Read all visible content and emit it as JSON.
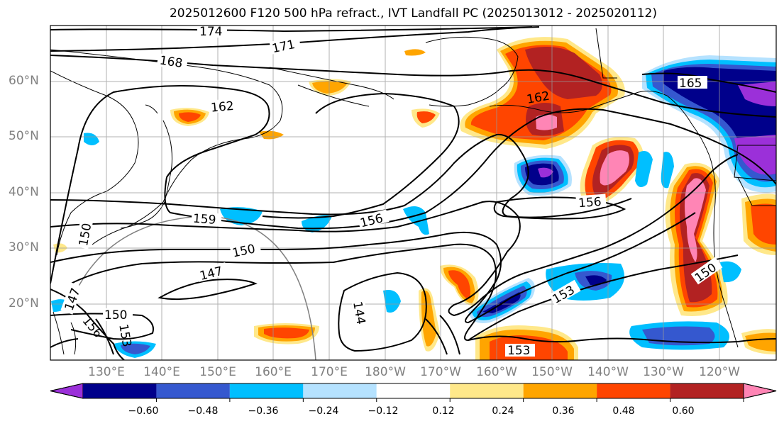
{
  "title": "2025012600 F120 500 hPa refract., IVT Landfall PC (2025013012 - 2025020112)",
  "lat_labels": [
    "60°N",
    "50°N",
    "40°N",
    "30°N",
    "20°N"
  ],
  "lon_labels": [
    "130°E",
    "140°E",
    "150°E",
    "160°E",
    "170°E",
    "180°W",
    "170°W",
    "160°W",
    "150°W",
    "140°W",
    "130°W",
    "120°W"
  ],
  "contour_labels": [
    "174",
    "171",
    "168",
    "165",
    "162",
    "162",
    "159",
    "156",
    "156",
    "153",
    "153",
    "150",
    "150",
    "150",
    "147",
    "147",
    "156",
    "153",
    "150",
    "144"
  ],
  "colorbar": {
    "ticks": [
      "−0.60",
      "−0.48",
      "−0.36",
      "−0.24",
      "−0.12",
      "0.12",
      "0.24",
      "0.36",
      "0.48",
      "0.60"
    ],
    "colors": [
      "#9b30d9",
      "#00008b",
      "#3558cf",
      "#00bfff",
      "#b5e2ff",
      "#ffffff",
      "#ffe88a",
      "#ffa500",
      "#ff4500",
      "#b22222",
      "#ff85b5"
    ]
  },
  "palette": {
    "pink": "#ff85b5",
    "dark_red": "#b22222",
    "orange_red": "#ff4500",
    "orange": "#ffa500",
    "yellow": "#ffe88a",
    "light_blue": "#b5e2ff",
    "cyan": "#00bfff",
    "royal_blue": "#3558cf",
    "navy": "#00008b",
    "purple": "#9b30d9"
  }
}
